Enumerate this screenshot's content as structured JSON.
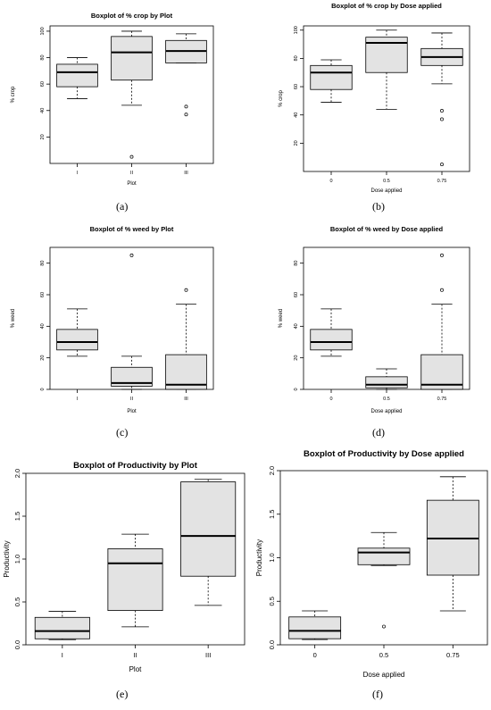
{
  "figure": {
    "panel_labels": [
      "(a)",
      "(b)",
      "(c)",
      "(d)",
      "(e)",
      "(f)"
    ]
  },
  "colors": {
    "box_fill": "#e3e3e3",
    "line": "#000000",
    "frame": "#000000"
  },
  "chart_data": [
    {
      "type": "boxplot",
      "title": "Boxplot of % crop by Plot",
      "xlabel": "Plot",
      "ylabel": "% crop",
      "categories": [
        "I",
        "II",
        "III"
      ],
      "ylim": [
        0,
        104
      ],
      "yticks": [
        20,
        40,
        60,
        80,
        100
      ],
      "boxes": [
        {
          "min": 49,
          "q1": 58,
          "median": 69,
          "q3": 75,
          "max": 80,
          "outliers": []
        },
        {
          "min": 44,
          "q1": 63,
          "median": 84,
          "q3": 96,
          "max": 100,
          "outliers": [
            5
          ]
        },
        {
          "min": 76,
          "q1": 76,
          "median": 85,
          "q3": 93,
          "max": 98,
          "outliers": [
            43,
            37
          ]
        }
      ]
    },
    {
      "type": "boxplot",
      "title": "Boxplot of % crop by Dose applied",
      "xlabel": "Dose applied",
      "ylabel": "% crop",
      "categories": [
        "0",
        "0.5",
        "0.75"
      ],
      "ylim": [
        0,
        103
      ],
      "yticks": [
        20,
        40,
        60,
        80,
        100
      ],
      "boxes": [
        {
          "min": 49,
          "q1": 58,
          "median": 70,
          "q3": 75,
          "max": 79,
          "outliers": []
        },
        {
          "min": 44,
          "q1": 70,
          "median": 91,
          "q3": 95,
          "max": 100,
          "outliers": []
        },
        {
          "min": 62,
          "q1": 75,
          "median": 81,
          "q3": 87,
          "max": 98,
          "outliers": [
            43,
            37,
            5
          ]
        }
      ]
    },
    {
      "type": "boxplot",
      "title": "Boxplot of % weed by Plot",
      "xlabel": "Plot",
      "ylabel": "% weed",
      "categories": [
        "I",
        "II",
        "III"
      ],
      "ylim": [
        0,
        90
      ],
      "yticks": [
        0,
        20,
        40,
        60,
        80
      ],
      "boxes": [
        {
          "min": 21,
          "q1": 25,
          "median": 30,
          "q3": 38,
          "max": 51,
          "outliers": []
        },
        {
          "min": 0,
          "q1": 2,
          "median": 4,
          "q3": 14,
          "max": 21,
          "outliers": [
            85
          ]
        },
        {
          "min": 0,
          "q1": 0,
          "median": 3,
          "q3": 22,
          "max": 54,
          "outliers": [
            63
          ]
        }
      ]
    },
    {
      "type": "boxplot",
      "title": "Boxplot of % weed by Dose applied",
      "xlabel": "Dose applied",
      "ylabel": "% weed",
      "categories": [
        "0",
        "0.5",
        "0.75"
      ],
      "ylim": [
        0,
        90
      ],
      "yticks": [
        0,
        20,
        40,
        60,
        80
      ],
      "boxes": [
        {
          "min": 21,
          "q1": 25,
          "median": 30,
          "q3": 38,
          "max": 51,
          "outliers": []
        },
        {
          "min": 0,
          "q1": 1,
          "median": 3,
          "q3": 8,
          "max": 13,
          "outliers": []
        },
        {
          "min": 0,
          "q1": 0,
          "median": 3,
          "q3": 22,
          "max": 54,
          "outliers": [
            85,
            63
          ]
        }
      ]
    },
    {
      "type": "boxplot",
      "title": "Boxplot of Productivity by Plot",
      "xlabel": "Plot",
      "ylabel": "Productivity",
      "categories": [
        "I",
        "II",
        "III"
      ],
      "ylim": [
        0,
        2.0
      ],
      "yticks": [
        0.0,
        0.5,
        1.0,
        1.5,
        2.0
      ],
      "ytick_labels": [
        "0.0",
        "0.5",
        "1.0",
        "1.5",
        "2.0"
      ],
      "boxes": [
        {
          "min": 0.06,
          "q1": 0.07,
          "median": 0.16,
          "q3": 0.32,
          "max": 0.39,
          "outliers": []
        },
        {
          "min": 0.21,
          "q1": 0.4,
          "median": 0.95,
          "q3": 1.12,
          "max": 1.29,
          "outliers": []
        },
        {
          "min": 0.46,
          "q1": 0.8,
          "median": 1.27,
          "q3": 1.9,
          "max": 1.93,
          "outliers": []
        }
      ]
    },
    {
      "type": "boxplot",
      "title": "Boxplot of Productivity by Dose applied",
      "xlabel": "Dose applied",
      "ylabel": "Productivity",
      "categories": [
        "0",
        "0.5",
        "0.75"
      ],
      "ylim": [
        0,
        2.0
      ],
      "yticks": [
        0.0,
        0.5,
        1.0,
        1.5,
        2.0
      ],
      "ytick_labels": [
        "0.0",
        "0.5",
        "1.0",
        "1.5",
        "2.0"
      ],
      "boxes": [
        {
          "min": 0.06,
          "q1": 0.07,
          "median": 0.16,
          "q3": 0.32,
          "max": 0.39,
          "outliers": []
        },
        {
          "min": 0.91,
          "q1": 0.92,
          "median": 1.06,
          "q3": 1.11,
          "max": 1.29,
          "outliers": [
            0.21
          ]
        },
        {
          "min": 0.39,
          "q1": 0.8,
          "median": 1.22,
          "q3": 1.66,
          "max": 1.93,
          "outliers": []
        }
      ]
    }
  ]
}
